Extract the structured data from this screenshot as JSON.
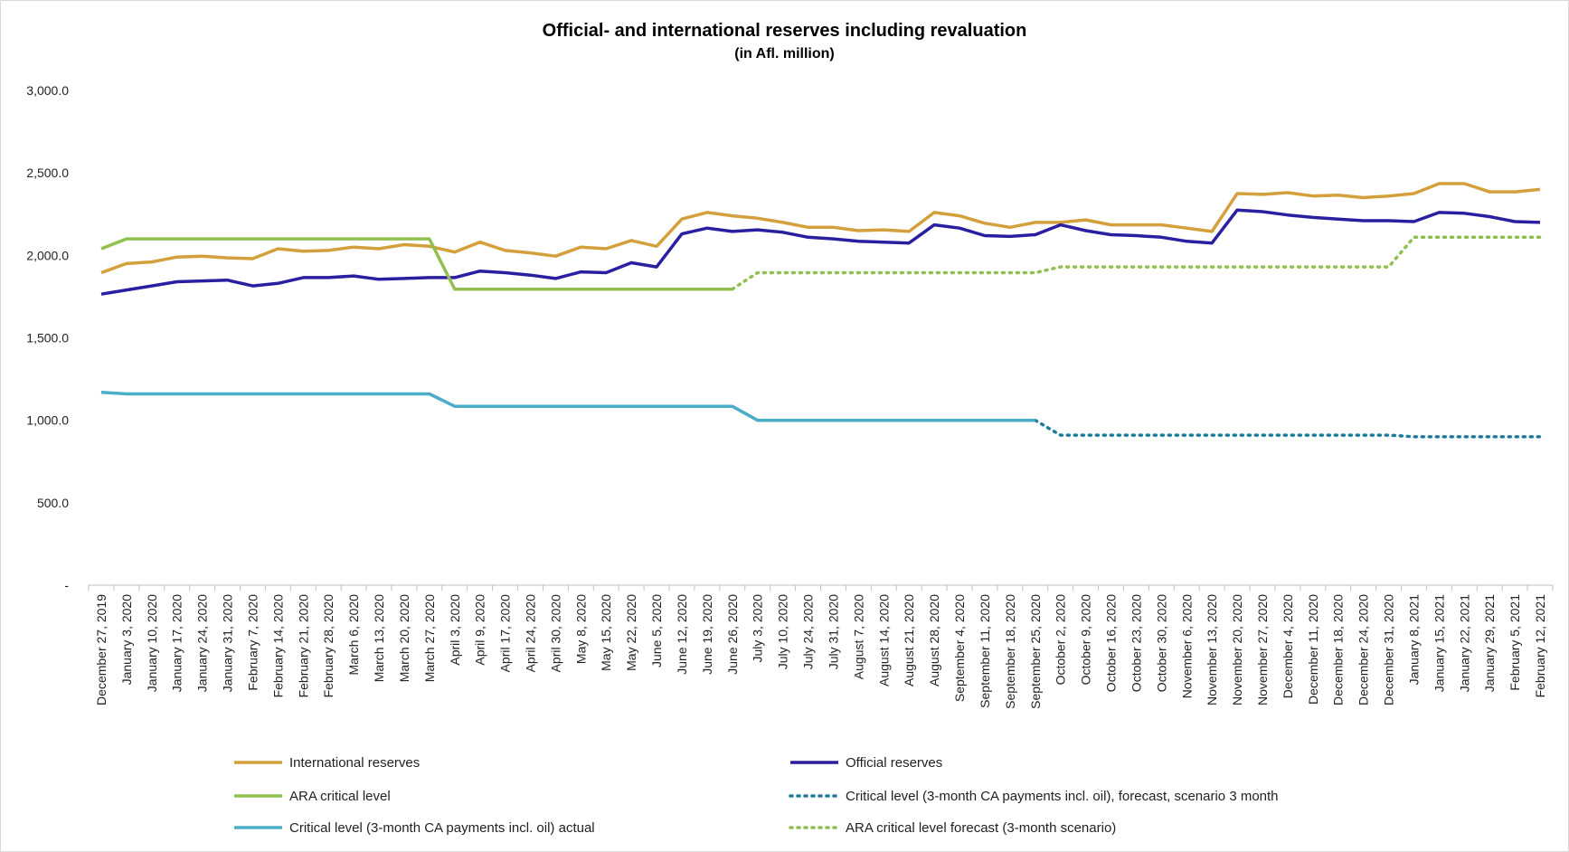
{
  "chart_data": {
    "type": "line",
    "title": "Official- and international reserves including revaluation",
    "subtitle": "(in Afl. million)",
    "ylim": [
      0,
      3000
    ],
    "yticks": [
      {
        "value": 0,
        "label": "-"
      },
      {
        "value": 500,
        "label": "500.0"
      },
      {
        "value": 1000,
        "label": "1,000.0"
      },
      {
        "value": 1500,
        "label": "1,500.0"
      },
      {
        "value": 2000,
        "label": "2,000.0"
      },
      {
        "value": 2500,
        "label": "2,500.0"
      },
      {
        "value": 3000,
        "label": "3,000.0"
      }
    ],
    "categories": [
      "December 27, 2019",
      "January 3, 2020",
      "January 10, 2020",
      "January 17, 2020",
      "January 24, 2020",
      "January 31, 2020",
      "February 7, 2020",
      "February 14, 2020",
      "February 21, 2020",
      "February 28, 2020",
      "March 6, 2020",
      "March 13, 2020",
      "March 20, 2020",
      "March 27, 2020",
      "April 3, 2020",
      "April 9, 2020",
      "April 17, 2020",
      "April 24, 2020",
      "April 30, 2020",
      "May 8, 2020",
      "May 15, 2020",
      "May 22, 2020",
      "June 5, 2020",
      "June 12, 2020",
      "June 19, 2020",
      "June 26, 2020",
      "July 3, 2020",
      "July 10, 2020",
      "July 24, 2020",
      "July 31, 2020",
      "August 7, 2020",
      "August 14, 2020",
      "August 21, 2020",
      "August 28, 2020",
      "September 4, 2020",
      "September 11, 2020",
      "September 18, 2020",
      "September 25, 2020",
      "October 2, 2020",
      "October 9, 2020",
      "October 16, 2020",
      "October 23, 2020",
      "October 30, 2020",
      "November 6, 2020",
      "November 13, 2020",
      "November 20, 2020",
      "November 27, 2020",
      "December 4, 2020",
      "December 11, 2020",
      "December 18, 2020",
      "December 24, 2020",
      "December 31, 2020",
      "January 8, 2021",
      "January 15, 2021",
      "January 22, 2021",
      "January 29, 2021",
      "February 5, 2021",
      "February 12, 2021"
    ],
    "series": [
      {
        "name": "International reserves",
        "color": "#d4a03c",
        "dash": "solid",
        "values": [
          1895,
          1950,
          1960,
          1990,
          1995,
          1985,
          1980,
          2040,
          2025,
          2030,
          2050,
          2040,
          2065,
          2055,
          2020,
          2080,
          2030,
          2015,
          1995,
          2050,
          2040,
          2090,
          2055,
          2220,
          2260,
          2240,
          2225,
          2200,
          2170,
          2170,
          2150,
          2155,
          2145,
          2260,
          2240,
          2195,
          2170,
          2200,
          2200,
          2215,
          2185,
          2185,
          2185,
          2165,
          2145,
          2375,
          2370,
          2380,
          2360,
          2365,
          2350,
          2360,
          2375,
          2435,
          2435,
          2385,
          2385,
          2400
        ]
      },
      {
        "name": "Official reserves",
        "color": "#2a1fa1",
        "dash": "solid",
        "values": [
          1765,
          1790,
          1815,
          1840,
          1845,
          1850,
          1815,
          1830,
          1865,
          1865,
          1875,
          1855,
          1860,
          1865,
          1865,
          1905,
          1895,
          1880,
          1860,
          1900,
          1895,
          1955,
          1930,
          2130,
          2165,
          2145,
          2155,
          2140,
          2110,
          2100,
          2085,
          2080,
          2075,
          2185,
          2165,
          2120,
          2115,
          2125,
          2185,
          2150,
          2125,
          2120,
          2110,
          2085,
          2075,
          2275,
          2265,
          2245,
          2230,
          2220,
          2210,
          2210,
          2205,
          2260,
          2255,
          2235,
          2205,
          2200
        ]
      },
      {
        "name": "ARA critical level",
        "color": "#92c050",
        "dash": "solid",
        "values": [
          2040,
          2100,
          2100,
          2100,
          2100,
          2100,
          2100,
          2100,
          2100,
          2100,
          2100,
          2100,
          2100,
          2100,
          1795,
          1795,
          1795,
          1795,
          1795,
          1795,
          1795,
          1795,
          1795,
          1795,
          1795,
          1795,
          null,
          null,
          null,
          null,
          null,
          null,
          null,
          null,
          null,
          null,
          null,
          null,
          null,
          null,
          null,
          null,
          null,
          null,
          null,
          null,
          null,
          null,
          null,
          null,
          null,
          null,
          null,
          null,
          null,
          null,
          null,
          null
        ]
      },
      {
        "name": "Critical level (3-month CA payments incl. oil), forecast, scenario 3 month",
        "color": "#1e7d9e",
        "dash": "dotted",
        "values": [
          null,
          null,
          null,
          null,
          null,
          null,
          null,
          null,
          null,
          null,
          null,
          null,
          null,
          null,
          null,
          null,
          null,
          null,
          null,
          null,
          null,
          null,
          null,
          null,
          null,
          null,
          null,
          null,
          null,
          null,
          null,
          null,
          null,
          null,
          null,
          null,
          null,
          1000,
          910,
          910,
          910,
          910,
          910,
          910,
          910,
          910,
          910,
          910,
          910,
          910,
          910,
          910,
          900,
          900,
          900,
          900,
          900,
          900
        ]
      },
      {
        "name": "Critical level (3-month CA payments incl. oil) actual",
        "color": "#4aaec8",
        "dash": "solid",
        "values": [
          1170,
          1160,
          1160,
          1160,
          1160,
          1160,
          1160,
          1160,
          1160,
          1160,
          1160,
          1160,
          1160,
          1160,
          1085,
          1085,
          1085,
          1085,
          1085,
          1085,
          1085,
          1085,
          1085,
          1085,
          1085,
          1085,
          1000,
          1000,
          1000,
          1000,
          1000,
          1000,
          1000,
          1000,
          1000,
          1000,
          1000,
          1000,
          null,
          null,
          null,
          null,
          null,
          null,
          null,
          null,
          null,
          null,
          null,
          null,
          null,
          null,
          null,
          null,
          null,
          null,
          null,
          null
        ]
      },
      {
        "name": "ARA critical level forecast (3-month scenario)",
        "color": "#92c050",
        "dash": "dotted",
        "values": [
          null,
          null,
          null,
          null,
          null,
          null,
          null,
          null,
          null,
          null,
          null,
          null,
          null,
          null,
          null,
          null,
          null,
          null,
          null,
          null,
          null,
          null,
          null,
          null,
          null,
          1795,
          1895,
          1895,
          1895,
          1895,
          1895,
          1895,
          1895,
          1895,
          1895,
          1895,
          1895,
          1895,
          1930,
          1930,
          1930,
          1930,
          1930,
          1930,
          1930,
          1930,
          1930,
          1930,
          1930,
          1930,
          1930,
          1930,
          2110,
          2110,
          2110,
          2110,
          2110,
          2110
        ]
      }
    ],
    "legend": {
      "placement": "bottom",
      "order": [
        {
          "series": "International reserves"
        },
        {
          "series": "Official reserves"
        },
        {
          "series": "ARA critical level"
        },
        {
          "series": "Critical level (3-month CA payments incl. oil), forecast, scenario 3 month"
        },
        {
          "series": "Critical level (3-month CA payments incl. oil) actual"
        },
        {
          "series": "ARA critical level forecast (3-month scenario)"
        }
      ]
    },
    "grid": false
  }
}
